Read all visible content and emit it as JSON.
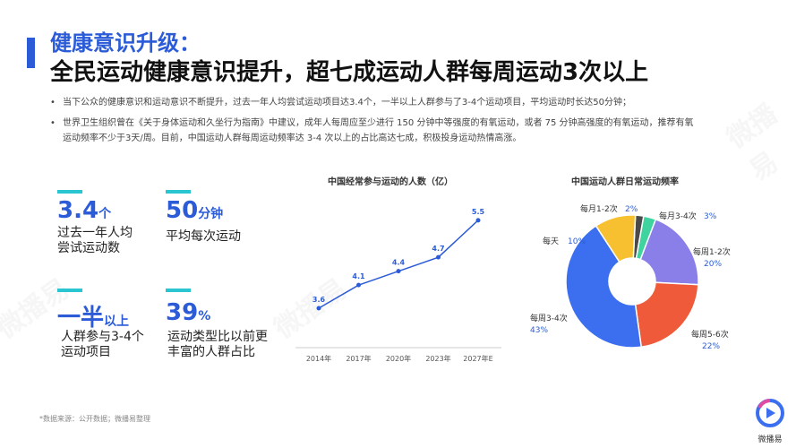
{
  "header": {
    "subtitle": "健康意识升级：",
    "title": "全民运动健康意识提升，超七成运动人群每周运动3次以上"
  },
  "bullets": [
    "当下公众的健康意识和运动意识不断提升，过去一年人均尝试运动项目达3.4个，一半以上人群参与了3-4个运动项目，平均运动时长达50分钟；",
    "世界卫生组织曾在《关于身体运动和久坐行为指南》中建议，成年人每周应至少进行 150 分钟中等强度的有氧运动，或者 75 分钟高强度的有氧运动，推荐有氧",
    "运动频率不少于3天/周。目前，中国运动人群每周运动频率达 3-4 次以上的占比高达七成，积极投身运动热情高涨。"
  ],
  "stats": [
    {
      "value": "3.4",
      "unit": "个",
      "desc1": "过去一年人均",
      "desc2": "尝试运动数"
    },
    {
      "value": "50",
      "unit": "分钟",
      "desc1": "平均每次运动",
      "desc2": ""
    },
    {
      "value": "一半",
      "unit": "以上",
      "desc1": "人群参与3-4个",
      "desc2": "运动项目"
    },
    {
      "value": "39",
      "unit": "%",
      "desc1": "运动类型比以前更",
      "desc2": "丰富的人群占比"
    }
  ],
  "footnote": "*数据来源：公开数据；微播易整理",
  "logo_text": "微播易",
  "watermark_text": "微播易",
  "colors": {
    "accent": "#2b5bd7",
    "teal": "#29c5d0",
    "line": "#2b5bd7"
  },
  "chart_data": [
    {
      "type": "line",
      "title": "中国经常参与运动的人数（亿）",
      "categories": [
        "2014年",
        "2017年",
        "2020年",
        "2023年",
        "2027年E"
      ],
      "values": [
        3.6,
        4.1,
        4.4,
        4.7,
        5.5
      ],
      "labels": [
        "3.6",
        "4.1",
        "4.4",
        "4.7",
        "5.5"
      ],
      "ylim": [
        3.0,
        6.0
      ],
      "grid": false
    },
    {
      "type": "pie",
      "title": "中国运动人群日常运动频率",
      "slices": [
        {
          "name": "每月1-2次",
          "value": 2,
          "label": "2%",
          "color": "#4a4a4a"
        },
        {
          "name": "每月3-4次",
          "value": 3,
          "label": "3%",
          "color": "#3fd3a0"
        },
        {
          "name": "每周1-2次",
          "value": 20,
          "label": "20%",
          "color": "#8a7ee8"
        },
        {
          "name": "每周5-6次",
          "value": 22,
          "label": "22%",
          "color": "#ef5a3a"
        },
        {
          "name": "每周3-4次",
          "value": 43,
          "label": "43%",
          "color": "#3b6ff0"
        },
        {
          "name": "每天",
          "value": 10,
          "label": "10%",
          "color": "#f7c030"
        }
      ]
    }
  ]
}
